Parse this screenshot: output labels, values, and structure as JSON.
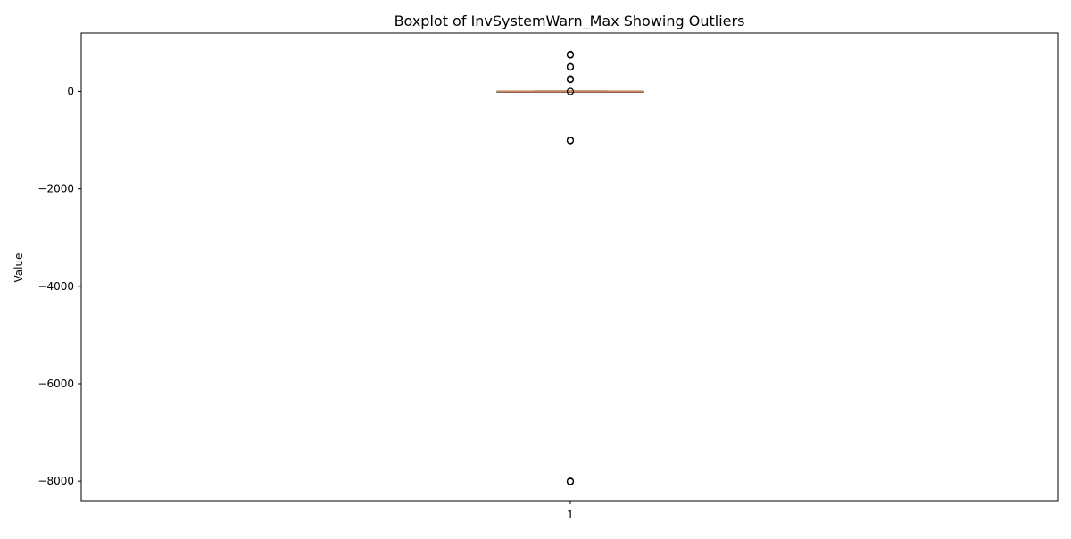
{
  "chart_data": {
    "type": "boxplot",
    "title": "Boxplot of InvSystemWarn_Max Showing Outliers",
    "xlabel": "",
    "ylabel": "Value",
    "ylim": [
      -8400,
      1200
    ],
    "yticks": [
      0,
      -2000,
      -4000,
      -6000,
      -8000
    ],
    "ytick_labels": [
      "0",
      "−2000",
      "−4000",
      "−6000",
      "−8000"
    ],
    "categories": [
      "1"
    ],
    "series": [
      {
        "category": "1",
        "q1": -5,
        "median": 0,
        "q3": 5,
        "whisker_low": -10,
        "whisker_high": 10,
        "outliers": [
          760,
          750,
          510,
          500,
          255,
          245,
          0,
          -1000,
          -1010,
          -8000,
          -8010
        ]
      }
    ],
    "grid": false,
    "colors": {
      "box": "#000000",
      "median": "#dd8452",
      "outlier_edge": "#000000",
      "axes": "#000000"
    }
  }
}
